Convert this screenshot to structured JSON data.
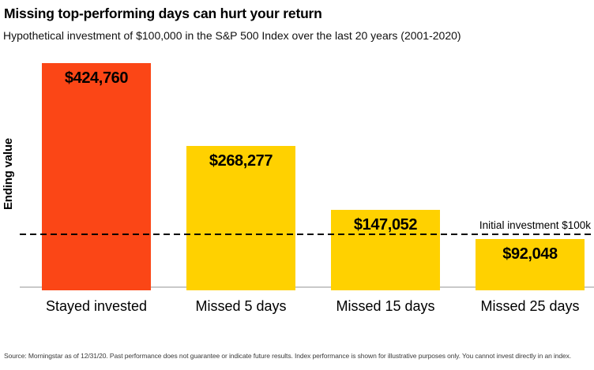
{
  "header": {
    "title": "Missing top-performing days can hurt your return",
    "subtitle": "Hypothetical investment of $100,000 in the S&P 500 Index over the last 20 years (2001-2020)"
  },
  "chart_data": {
    "type": "bar",
    "title": "Missing top-performing days can hurt your return",
    "subtitle": "Hypothetical investment of $100,000 in the S&P 500 Index over the last 20 years (2001-2020)",
    "xlabel": "",
    "ylabel": "Ending value",
    "categories": [
      "Stayed invested",
      "Missed 5 days",
      "Missed 15 days",
      "Missed 25 days"
    ],
    "values": [
      424760,
      268277,
      147052,
      92048
    ],
    "value_labels": [
      "$424,760",
      "$268,277",
      "$147,052",
      "$92,048"
    ],
    "bar_colors": [
      "#FB4616",
      "#FFD100",
      "#FFD100",
      "#FFD100"
    ],
    "reference_line": {
      "value": 100000,
      "label": "Initial investment $100k",
      "style": "dashed",
      "color": "#000000"
    },
    "ylim": [
      0,
      440000
    ],
    "grid": false,
    "legend": false,
    "value_labels_position": "inside-top"
  },
  "footer": {
    "source": "Source: Morningstar as of 12/31/20. Past performance does not guarantee or indicate future results. Index performance is shown for illustrative purposes only. You cannot invest directly in an index."
  },
  "colors": {
    "highlight_bar": "#FB4616",
    "standard_bar": "#FFD100",
    "axis_line": "#C9C9C9",
    "text": "#000000"
  }
}
